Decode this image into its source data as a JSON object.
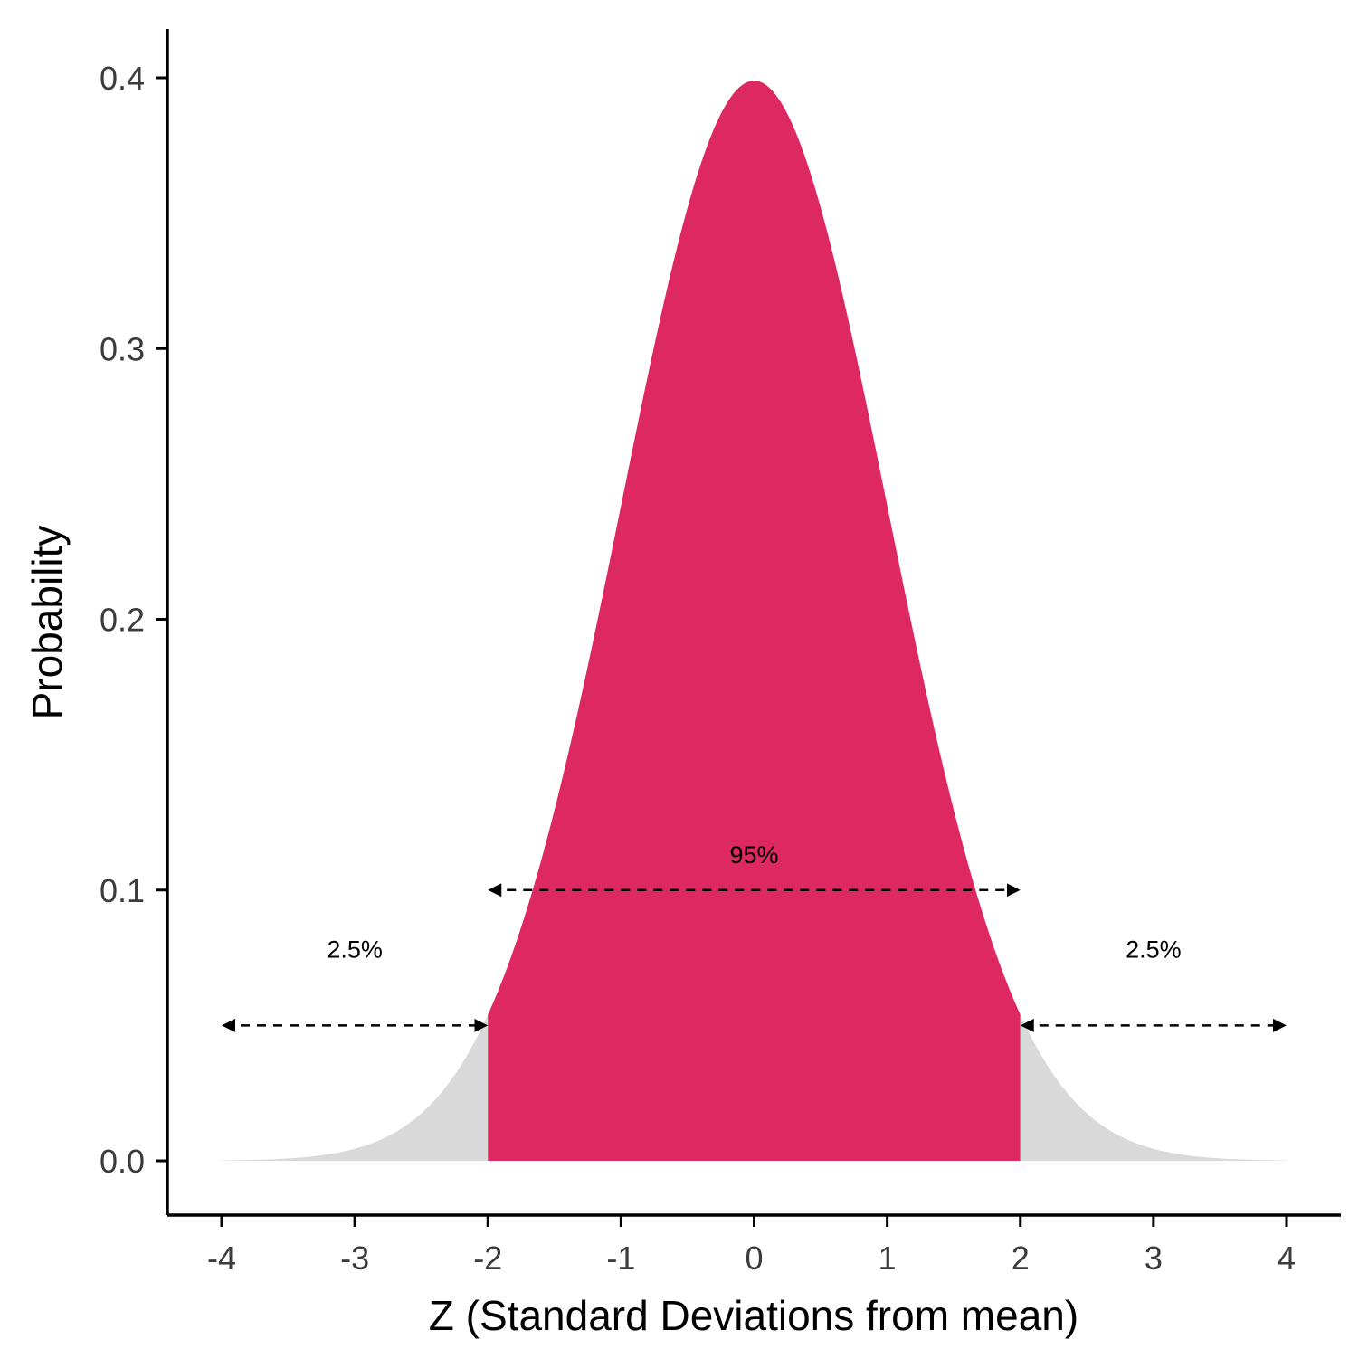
{
  "chart_data": {
    "type": "area",
    "title": "",
    "xlabel": "Z (Standard Deviations from mean)",
    "ylabel": "Probability",
    "xlim": [
      -4,
      4
    ],
    "ylim": [
      0,
      0.4
    ],
    "x_ticks": [
      "-4",
      "-3",
      "-2",
      "-1",
      "0",
      "1",
      "2",
      "3",
      "4"
    ],
    "y_ticks": [
      "0.0",
      "0.1",
      "0.2",
      "0.3",
      "0.4"
    ],
    "grid": false,
    "distribution": "standard normal",
    "regions": [
      {
        "from": -4,
        "to": -2,
        "color": "#d9d9d9"
      },
      {
        "from": -2,
        "to": 2,
        "color": "#dd2861"
      },
      {
        "from": 2,
        "to": 4,
        "color": "#d9d9d9"
      }
    ],
    "annotations": [
      {
        "label": "2.5%",
        "from": -4,
        "to": -2,
        "y": 0.05,
        "label_y": 0.075
      },
      {
        "label": "95%",
        "from": -2,
        "to": 2,
        "y": 0.1,
        "label_y": 0.11
      },
      {
        "label": "2.5%",
        "from": 2,
        "to": 4,
        "y": 0.05,
        "label_y": 0.075
      }
    ]
  }
}
